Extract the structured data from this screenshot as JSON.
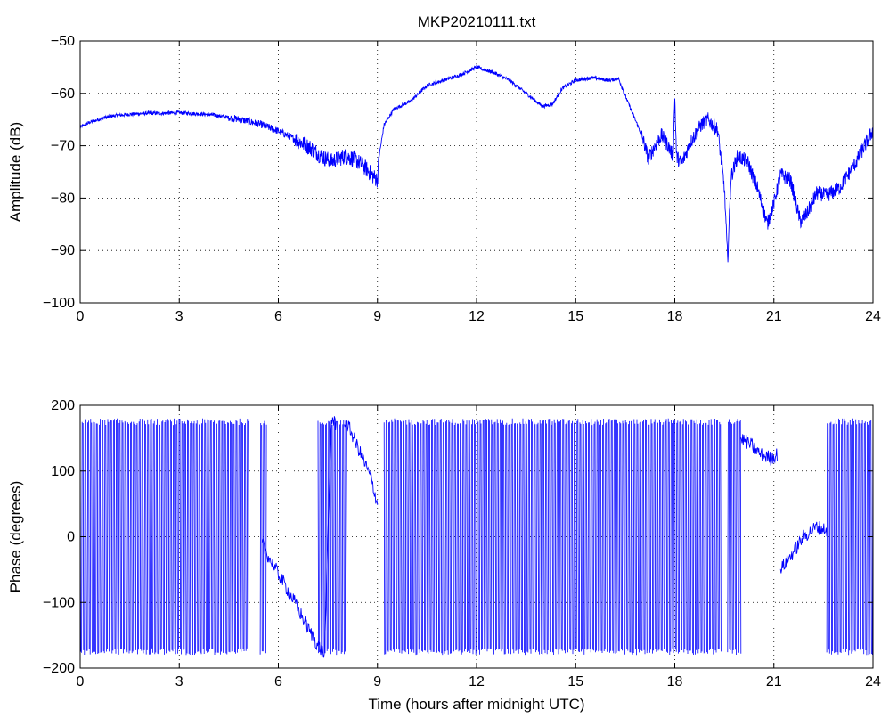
{
  "chart_data": [
    {
      "type": "line",
      "title": "MKP20210111.txt",
      "xlabel": "",
      "ylabel": "Amplitude (dB)",
      "xlim": [
        0,
        24
      ],
      "ylim": [
        -100,
        -50
      ],
      "xticks": [
        0,
        3,
        6,
        9,
        12,
        15,
        18,
        21,
        24
      ],
      "yticks": [
        -100,
        -90,
        -80,
        -70,
        -60,
        -50
      ],
      "ytick_labels": [
        "−100",
        "−90",
        "−80",
        "−70",
        "−60",
        "−50"
      ],
      "grid": true,
      "color": "#0000ff",
      "series": [
        {
          "x": [
            0,
            0.3,
            0.7,
            1,
            1.5,
            2,
            2.5,
            3,
            3.5,
            4,
            4.5,
            5,
            5.5,
            6,
            6.5,
            7,
            7.3,
            7.6,
            8,
            8.3,
            8.6,
            8.9,
            9.0,
            9.05,
            9.2,
            9.5,
            10,
            10.5,
            11,
            11.5,
            12,
            12.5,
            13,
            13.5,
            14,
            14.3,
            14.6,
            15,
            15.5,
            16,
            16.3,
            16.6,
            17,
            17.2,
            17.4,
            17.6,
            17.8,
            17.95,
            18.0,
            18.05,
            18.2,
            18.5,
            18.8,
            19.0,
            19.3,
            19.5,
            19.6,
            19.7,
            19.9,
            20.2,
            20.5,
            20.8,
            21.0,
            21.2,
            21.5,
            21.8,
            22.0,
            22.3,
            22.6,
            23.0,
            23.5,
            24
          ],
          "y": [
            -66.5,
            -65.5,
            -64.7,
            -64.3,
            -64,
            -63.8,
            -63.8,
            -63.7,
            -63.9,
            -64.1,
            -64.6,
            -65.2,
            -66,
            -67.2,
            -68.7,
            -70.5,
            -72,
            -73,
            -72,
            -72.5,
            -74,
            -76,
            -76.5,
            -72,
            -66,
            -63,
            -61.5,
            -58.5,
            -57.5,
            -56.5,
            -55,
            -56,
            -57.5,
            -60,
            -62.5,
            -62,
            -59,
            -57.5,
            -57,
            -57.5,
            -57.2,
            -62,
            -68,
            -72.5,
            -70,
            -68,
            -70,
            -72,
            -60.5,
            -72,
            -73.5,
            -69,
            -66,
            -65,
            -67,
            -78,
            -92,
            -76,
            -72,
            -73,
            -78,
            -85,
            -81,
            -75.5,
            -76.5,
            -84.5,
            -83,
            -79,
            -79.5,
            -78,
            -73,
            -67
          ]
        }
      ]
    },
    {
      "type": "line",
      "title": "",
      "xlabel": "Time (hours after midnight UTC)",
      "ylabel": "Phase (degrees)",
      "xlim": [
        0,
        24
      ],
      "ylim": [
        -200,
        200
      ],
      "xticks": [
        0,
        3,
        6,
        9,
        12,
        15,
        18,
        21,
        24
      ],
      "yticks": [
        -200,
        -100,
        0,
        100,
        200
      ],
      "ytick_labels": [
        "−200",
        "−100",
        "0",
        "100",
        "200"
      ],
      "grid": true,
      "color": "#0000ff",
      "wrapped_segments": [
        [
          0,
          5.1
        ],
        [
          5.45,
          5.65
        ],
        [
          7.2,
          8.1
        ],
        [
          9.2,
          19.4
        ],
        [
          19.6,
          20.0
        ],
        [
          22.6,
          24
        ]
      ],
      "series": [
        {
          "x": [
            5.5,
            5.8,
            6.1,
            6.5,
            6.9,
            7.2,
            7.4,
            7.6,
            7.75
          ],
          "y": [
            -10,
            -40,
            -65,
            -100,
            -140,
            -165,
            -180,
            180,
            170
          ]
        },
        {
          "x": [
            8.0,
            8.2,
            8.5,
            8.8,
            9.0
          ],
          "y": [
            178,
            160,
            125,
            90,
            50
          ]
        },
        {
          "x": [
            20.0,
            20.3,
            20.6,
            20.9,
            21.1
          ],
          "y": [
            150,
            140,
            125,
            120,
            125
          ]
        },
        {
          "x": [
            21.2,
            21.5,
            21.9,
            22.3,
            22.6
          ],
          "y": [
            -50,
            -30,
            0,
            15,
            10
          ]
        }
      ]
    }
  ]
}
